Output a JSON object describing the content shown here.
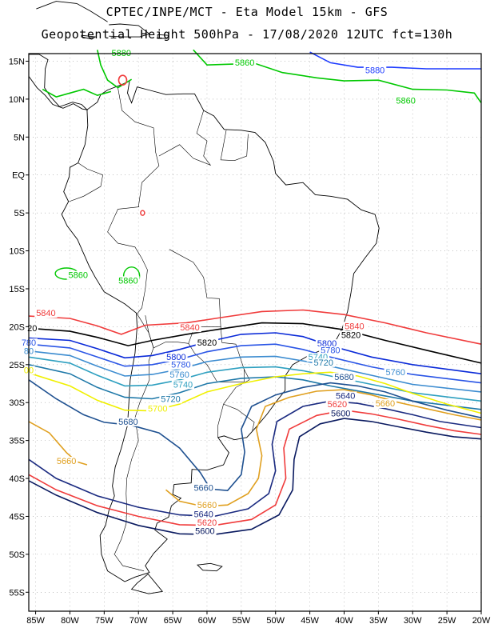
{
  "header": {
    "line1": "CPTEC/INPE/MCT -  Eta Model 15km - GFS",
    "line2": "Geopotential Height 500hPa - 17/08/2020 12UTC fct=130h"
  },
  "axes": {
    "lat_labels": [
      "15N",
      "10N",
      "5N",
      "EQ",
      "5S",
      "10S",
      "15S",
      "20S",
      "25S",
      "30S",
      "35S",
      "40S",
      "45S",
      "50S",
      "55S"
    ],
    "lon_labels": [
      "85W",
      "80W",
      "75W",
      "70W",
      "65W",
      "60W",
      "55W",
      "50W",
      "45W",
      "40W",
      "35W",
      "30W",
      "25W",
      "20W"
    ],
    "lat_range": [
      16,
      -57.5
    ],
    "lon_range": [
      -86,
      -20
    ]
  },
  "colors": {
    "c5880": "#00c800",
    "c5860": "#1e3cff",
    "c5840": "#f03c3c",
    "c5820": "#000000",
    "c5800": "#0a2ad8",
    "c5780": "#2a55e6",
    "c5760": "#3c8cd0",
    "c5740": "#2fa0c0",
    "c5720": "#1e78a8",
    "c5700": "#f0f000",
    "c5680": "#1e5090",
    "c5660": "#e0a020",
    "c5640": "#1a2a80",
    "c5620": "#f03c3c",
    "c5600": "#0a1a60"
  },
  "contour_labels": [
    {
      "text": "5880",
      "lat": 15.8,
      "lon": -72.5,
      "color": "c5880"
    },
    {
      "text": "5860",
      "lat": 14.5,
      "lon": -54.5,
      "color": "c5880"
    },
    {
      "text": "5880",
      "lat": 13.5,
      "lon": -35.5,
      "color": "c5860"
    },
    {
      "text": "5860",
      "lat": 9.5,
      "lon": -31.0,
      "color": "c5880"
    },
    {
      "text": "5860",
      "lat": -13.5,
      "lon": -78.8,
      "color": "c5880"
    },
    {
      "text": "5860",
      "lat": -14.2,
      "lon": -71.5,
      "color": "c5880"
    },
    {
      "text": "5840",
      "lat": -18.5,
      "lon": -83.5,
      "color": "c5840"
    },
    {
      "text": "20",
      "lat": -20.5,
      "lon": -85.5,
      "color": "c5820"
    },
    {
      "text": "780",
      "lat": -22.4,
      "lon": -86.0,
      "color": "c5780"
    },
    {
      "text": "80",
      "lat": -23.5,
      "lon": -86.0,
      "color": "c5760"
    },
    {
      "text": "00",
      "lat": -26.0,
      "lon": -86.0,
      "color": "c5700"
    },
    {
      "text": "5840",
      "lat": -20.4,
      "lon": -62.5,
      "color": "c5840"
    },
    {
      "text": "5820",
      "lat": -22.4,
      "lon": -60.0,
      "color": "c5820"
    },
    {
      "text": "5800",
      "lat": -24.3,
      "lon": -64.5,
      "color": "c5800"
    },
    {
      "text": "5780",
      "lat": -25.3,
      "lon": -63.8,
      "color": "c5780"
    },
    {
      "text": "5760",
      "lat": -26.6,
      "lon": -64.0,
      "color": "c5760"
    },
    {
      "text": "5740",
      "lat": -27.9,
      "lon": -63.5,
      "color": "c5740"
    },
    {
      "text": "5720",
      "lat": -29.8,
      "lon": -65.3,
      "color": "c5720"
    },
    {
      "text": "5700",
      "lat": -31.1,
      "lon": -67.2,
      "color": "c5700"
    },
    {
      "text": "5680",
      "lat": -32.8,
      "lon": -71.5,
      "color": "c5680"
    },
    {
      "text": "5660",
      "lat": -38.0,
      "lon": -80.5,
      "color": "c5660"
    },
    {
      "text": "5660",
      "lat": -41.5,
      "lon": -60.5,
      "color": "c5680"
    },
    {
      "text": "5660",
      "lat": -43.8,
      "lon": -60.0,
      "color": "c5660"
    },
    {
      "text": "5640",
      "lat": -45.0,
      "lon": -60.5,
      "color": "c5640"
    },
    {
      "text": "5620",
      "lat": -46.1,
      "lon": -60.0,
      "color": "c5620"
    },
    {
      "text": "5600",
      "lat": -47.2,
      "lon": -60.3,
      "color": "c5600"
    },
    {
      "text": "5840",
      "lat": -20.2,
      "lon": -38.5,
      "color": "c5840"
    },
    {
      "text": "5820",
      "lat": -21.4,
      "lon": -39.0,
      "color": "c5820"
    },
    {
      "text": "5800",
      "lat": -22.5,
      "lon": -42.5,
      "color": "c5800"
    },
    {
      "text": "5780",
      "lat": -23.4,
      "lon": -42.0,
      "color": "c5780"
    },
    {
      "text": "5740",
      "lat": -24.3,
      "lon": -43.8,
      "color": "c5740"
    },
    {
      "text": "5720",
      "lat": -25.0,
      "lon": -43.0,
      "color": "c5720"
    },
    {
      "text": "5760",
      "lat": -26.3,
      "lon": -32.5,
      "color": "c5760"
    },
    {
      "text": "5680",
      "lat": -26.9,
      "lon": -40.0,
      "color": "c5680"
    },
    {
      "text": "5640",
      "lat": -29.4,
      "lon": -39.8,
      "color": "c5640"
    },
    {
      "text": "5620",
      "lat": -30.5,
      "lon": -41.0,
      "color": "c5620"
    },
    {
      "text": "5600",
      "lat": -31.7,
      "lon": -40.5,
      "color": "c5600"
    },
    {
      "text": "5660",
      "lat": -30.4,
      "lon": -34.0,
      "color": "c5660"
    }
  ]
}
